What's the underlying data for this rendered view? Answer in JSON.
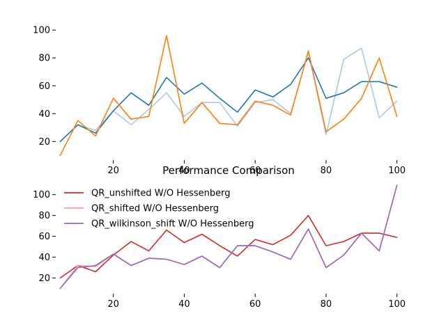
{
  "chart_data": [
    {
      "type": "line",
      "title": "",
      "xlabel": "",
      "ylabel": "",
      "xlim": [
        3.75,
        101.25
      ],
      "ylim": [
        6.67,
        103.6
      ],
      "xticks": [
        20,
        40,
        60,
        80,
        100
      ],
      "yticks": [
        20,
        40,
        60,
        80,
        100
      ],
      "grid": false,
      "x": [
        5,
        10,
        15,
        20,
        25,
        30,
        35,
        40,
        45,
        50,
        55,
        60,
        65,
        70,
        75,
        80,
        85,
        90,
        95,
        100
      ],
      "series": [
        {
          "color": "#aec7e8",
          "values": [
            20,
            32,
            28,
            42,
            32,
            43,
            55,
            38,
            48,
            48,
            31,
            48,
            50,
            40,
            84,
            25,
            79,
            87,
            37,
            49
          ]
        },
        {
          "color": "#1f77b4",
          "values": [
            20,
            32,
            26,
            42,
            55,
            46,
            66,
            54,
            62,
            51,
            41,
            57,
            52,
            61,
            80,
            51,
            55,
            63,
            63,
            59
          ]
        },
        {
          "color": "#ff7f0e",
          "values": [
            10,
            35,
            24,
            51,
            36,
            38,
            96,
            33,
            48,
            33,
            32,
            49,
            46,
            39,
            85,
            27,
            36,
            51,
            80,
            38
          ]
        }
      ]
    },
    {
      "type": "line",
      "title": "Performance Comparison",
      "xlabel": "",
      "ylabel": "",
      "xlim": [
        3.75,
        101.25
      ],
      "ylim": [
        5.0,
        114.5
      ],
      "xticks": [
        20,
        40,
        60,
        80,
        100
      ],
      "yticks": [
        20,
        40,
        60,
        80,
        100
      ],
      "grid": false,
      "legend": "top-left",
      "x": [
        5,
        10,
        15,
        20,
        25,
        30,
        35,
        40,
        45,
        50,
        55,
        60,
        65,
        70,
        75,
        80,
        85,
        90,
        95,
        100
      ],
      "series": [
        {
          "name": "QR_unshifted W/O Hessenberg",
          "color": "#d62728",
          "values": [
            20,
            32,
            26,
            42,
            55,
            46,
            66,
            54,
            62,
            51,
            41,
            57,
            52,
            61,
            80,
            51,
            55,
            63,
            63,
            59
          ]
        },
        {
          "name": "QR_shifted W/O Hessenberg",
          "color": "#ff9896",
          "values": [
            10,
            32,
            31,
            43,
            32,
            39,
            38,
            33,
            41,
            30,
            51,
            51,
            45,
            38,
            67,
            30,
            42,
            63,
            46,
            109
          ]
        },
        {
          "name": "QR_wilkinson_shift W/O Hessenberg",
          "color": "#9467bd",
          "values": [
            10,
            30,
            32,
            43,
            32,
            39,
            38,
            33,
            41,
            30,
            51,
            51,
            45,
            38,
            67,
            30,
            42,
            63,
            46,
            109
          ]
        }
      ]
    }
  ]
}
